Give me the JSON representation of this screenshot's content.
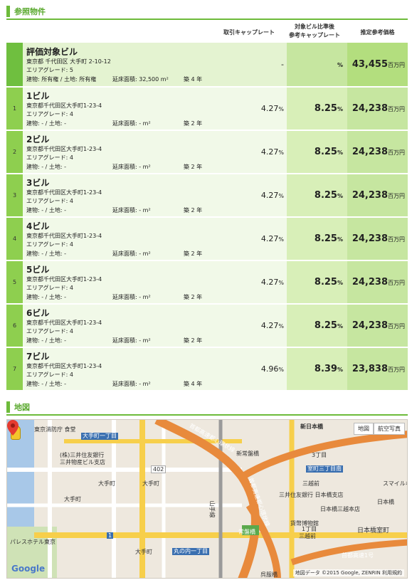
{
  "sections": {
    "properties": "参照物件",
    "map": "地図"
  },
  "headers": {
    "cap_rate": "取引キャップレート",
    "ref_cap_line1": "対象ビル比準後",
    "ref_cap_line2": "参考キャップレート",
    "price": "推定参考価格"
  },
  "target": {
    "name": "評価対象ビル",
    "address": "東京都 千代田区 大手町 2-10-12",
    "grade": "エリアグレード: 5",
    "rights": "建物: 所有権 / 土地: 所有権",
    "floor": "延床面積: 32,500 m²",
    "age": "築 4 年",
    "cap_rate": "-",
    "ref_cap": "",
    "ref_cap_unit": "%",
    "price": "43,455",
    "price_unit": "百万円"
  },
  "rows": [
    {
      "num": "1",
      "name": "1ビル",
      "address": "東京都千代田区大手町1-23-4",
      "grade": "エリアグレード: 4",
      "rights": "建物: - / 土地: -",
      "floor": "延床面積: - m²",
      "age": "築 2 年",
      "cap_rate": "4.27",
      "ref_cap": "8.25",
      "price": "24,238"
    },
    {
      "num": "2",
      "name": "2ビル",
      "address": "東京都千代田区大手町1-23-4",
      "grade": "エリアグレード: 4",
      "rights": "建物: - / 土地: -",
      "floor": "延床面積: - m²",
      "age": "築 2 年",
      "cap_rate": "4.27",
      "ref_cap": "8.25",
      "price": "24,238"
    },
    {
      "num": "3",
      "name": "3ビル",
      "address": "東京都千代田区大手町1-23-4",
      "grade": "エリアグレード: 4",
      "rights": "建物: - / 土地: -",
      "floor": "延床面積: - m²",
      "age": "築 2 年",
      "cap_rate": "4.27",
      "ref_cap": "8.25",
      "price": "24,238"
    },
    {
      "num": "4",
      "name": "4ビル",
      "address": "東京都千代田区大手町1-23-4",
      "grade": "エリアグレード: 4",
      "rights": "建物: - / 土地: -",
      "floor": "延床面積: - m²",
      "age": "築 2 年",
      "cap_rate": "4.27",
      "ref_cap": "8.25",
      "price": "24,238"
    },
    {
      "num": "5",
      "name": "5ビル",
      "address": "東京都千代田区大手町1-23-4",
      "grade": "エリアグレード: 4",
      "rights": "建物: - / 土地: -",
      "floor": "延床面積: - m²",
      "age": "築 2 年",
      "cap_rate": "4.27",
      "ref_cap": "8.25",
      "price": "24,238"
    },
    {
      "num": "6",
      "name": "6ビル",
      "address": "東京都千代田区大手町1-23-4",
      "grade": "エリアグレード: 4",
      "rights": "建物: - / 土地: -",
      "floor": "延床面積: - m²",
      "age": "築 2 年",
      "cap_rate": "4.27",
      "ref_cap": "8.25",
      "price": "24,238"
    },
    {
      "num": "7",
      "name": "7ビル",
      "address": "東京都千代田区大手町1-23-4",
      "grade": "エリアグレード: 4",
      "rights": "建物: - / 土地: -",
      "floor": "延床面積: - m²",
      "age": "築 4 年",
      "cap_rate": "4.96",
      "ref_cap": "8.39",
      "price": "23,838"
    }
  ],
  "units": {
    "pct": "%",
    "million_yen": "百万円"
  },
  "map": {
    "btn_map": "地図",
    "btn_satellite": "航空写真",
    "labels": [
      "東京消防庁 食堂",
      "大手町一丁目",
      "(株)三井住友銀行",
      "三井物産ビル支店",
      "大手町",
      "大手町",
      "大手町",
      "大手町",
      "パレスホテル東京",
      "丸の内一丁目",
      "新日本橋",
      "新常盤橋",
      "常盤橋",
      "呉服橋",
      "三越前",
      "三越前",
      "室町三丁目南",
      "三井住友銀行 日本橋支店",
      "日本橋三越本店",
      "貨幣博物館",
      "日本橋室町",
      "スマイルホ",
      "1丁目",
      "3丁目",
      "日本橋"
    ],
    "route_1": "402",
    "route_2": "1",
    "highway": "首都高速都心環状線",
    "highway2": "首都高速都心環状線",
    "highway3": "首都高速1号",
    "rail": "山手線",
    "map_logo": "Google",
    "credit": "地図データ ©2015 Google, ZENRIN 利用規約"
  }
}
